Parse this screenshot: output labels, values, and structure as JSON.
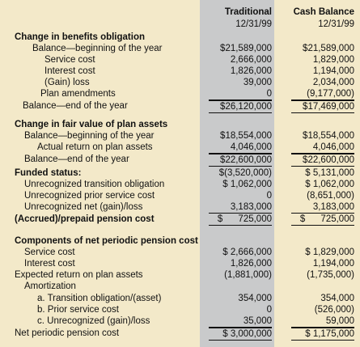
{
  "columns": [
    {
      "title": "Traditional",
      "date": "12/31/99"
    },
    {
      "title": "Cash Balance",
      "date": "12/31/99"
    }
  ],
  "rows": [
    {
      "label": "Change in benefits obligation"
    },
    {
      "label": "Balance—beginning of the year",
      "traditional": "$21,589,000",
      "cash_balance": "$21,589,000"
    },
    {
      "label": "Service cost",
      "traditional": "2,666,000",
      "cash_balance": "1,829,000"
    },
    {
      "label": "Interest cost",
      "traditional": "1,826,000",
      "cash_balance": "1,194,000"
    },
    {
      "label": "(Gain) loss",
      "traditional": "39,000",
      "cash_balance": "2,034,000"
    },
    {
      "label": "Plan amendments",
      "traditional": "0",
      "cash_balance": "(9,177,000)"
    },
    {
      "label": "Balance—end of the year",
      "traditional": "$26,120,000",
      "cash_balance": "$17,469,000"
    },
    {
      "label": "Change in fair value of plan assets"
    },
    {
      "label": "Balance—beginning of the year",
      "traditional": "$18,554,000",
      "cash_balance": "$18,554,000"
    },
    {
      "label": "Actual return on plan assets",
      "traditional": "4,046,000",
      "cash_balance": "4,046,000"
    },
    {
      "label": "Balance—end of the year",
      "traditional": "$22,600,000",
      "cash_balance": "$22,600,000"
    },
    {
      "label": "Funded status:",
      "traditional": "$(3,520,000)",
      "cash_balance": "$ 5,131,000"
    },
    {
      "label": "Unrecognized transition obligation",
      "traditional": "$ 1,062,000",
      "cash_balance": "$ 1,062,000"
    },
    {
      "label": "Unrecognized prior service cost",
      "traditional": "0",
      "cash_balance": "(8,651,000)"
    },
    {
      "label": "Unrecognized net (gain)/loss",
      "traditional": "3,183,000",
      "cash_balance": "3,183,000"
    },
    {
      "label": "(Accrued)/prepaid pension cost",
      "traditional": "$      725,000",
      "cash_balance": "$      725,000"
    },
    {
      "label": "Components of net periodic pension cost"
    },
    {
      "label": "Service cost",
      "traditional": "$ 2,666,000",
      "cash_balance": "$ 1,829,000"
    },
    {
      "label": "Interest cost",
      "traditional": "1,826,000",
      "cash_balance": "1,194,000"
    },
    {
      "label": "Expected return on plan assets",
      "traditional": "(1,881,000)",
      "cash_balance": "(1,735,000)"
    },
    {
      "label": "Amortization"
    },
    {
      "label": "a. Transition obligation/(asset)",
      "traditional": "354,000",
      "cash_balance": "354,000"
    },
    {
      "label": "b. Prior service cost",
      "traditional": "0",
      "cash_balance": "(526,000)"
    },
    {
      "label": "c. Unrecognized (gain)/loss",
      "traditional": "35,000",
      "cash_balance": "59,000"
    },
    {
      "label": "Net periodic pension cost",
      "traditional": "$ 3,000,000",
      "cash_balance": "$ 1,175,000"
    }
  ]
}
